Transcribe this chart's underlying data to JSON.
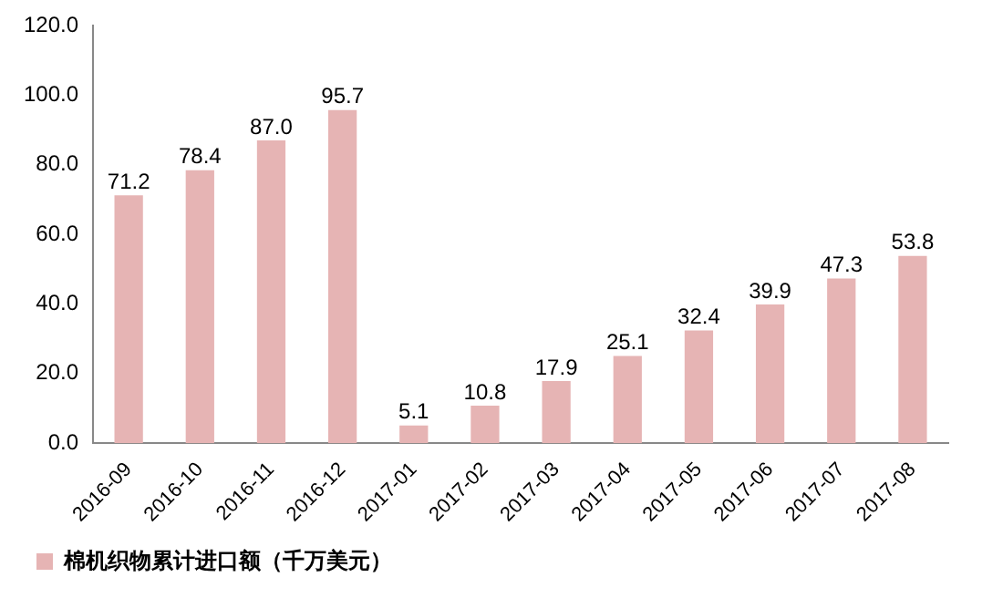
{
  "chart_data": {
    "type": "bar",
    "categories": [
      "2016-09",
      "2016-10",
      "2016-11",
      "2016-12",
      "2017-01",
      "2017-02",
      "2017-03",
      "2017-04",
      "2017-05",
      "2017-06",
      "2017-07",
      "2017-08"
    ],
    "series": [
      {
        "name": "棉机织物累计进口额（千万美元）",
        "color": "#e6b4b4",
        "values": [
          71.2,
          78.4,
          87.0,
          95.7,
          5.1,
          10.8,
          17.9,
          25.1,
          32.4,
          39.9,
          47.3,
          53.8
        ],
        "value_labels": [
          "71.2",
          "78.4",
          "87.0",
          "95.7",
          "5.1",
          "10.8",
          "17.9",
          "25.1",
          "32.4",
          "39.9",
          "47.3",
          "53.8"
        ]
      }
    ],
    "ylim": [
      0,
      120
    ],
    "yticks": [
      {
        "value": 0,
        "label": "0.0"
      },
      {
        "value": 20,
        "label": "20.0"
      },
      {
        "value": 40,
        "label": "40.0"
      },
      {
        "value": 60,
        "label": "60.0"
      },
      {
        "value": 80,
        "label": "80.0"
      },
      {
        "value": 100,
        "label": "100.0"
      },
      {
        "value": 120,
        "label": "120.0"
      }
    ],
    "grid": false,
    "legend": "bottom left"
  }
}
